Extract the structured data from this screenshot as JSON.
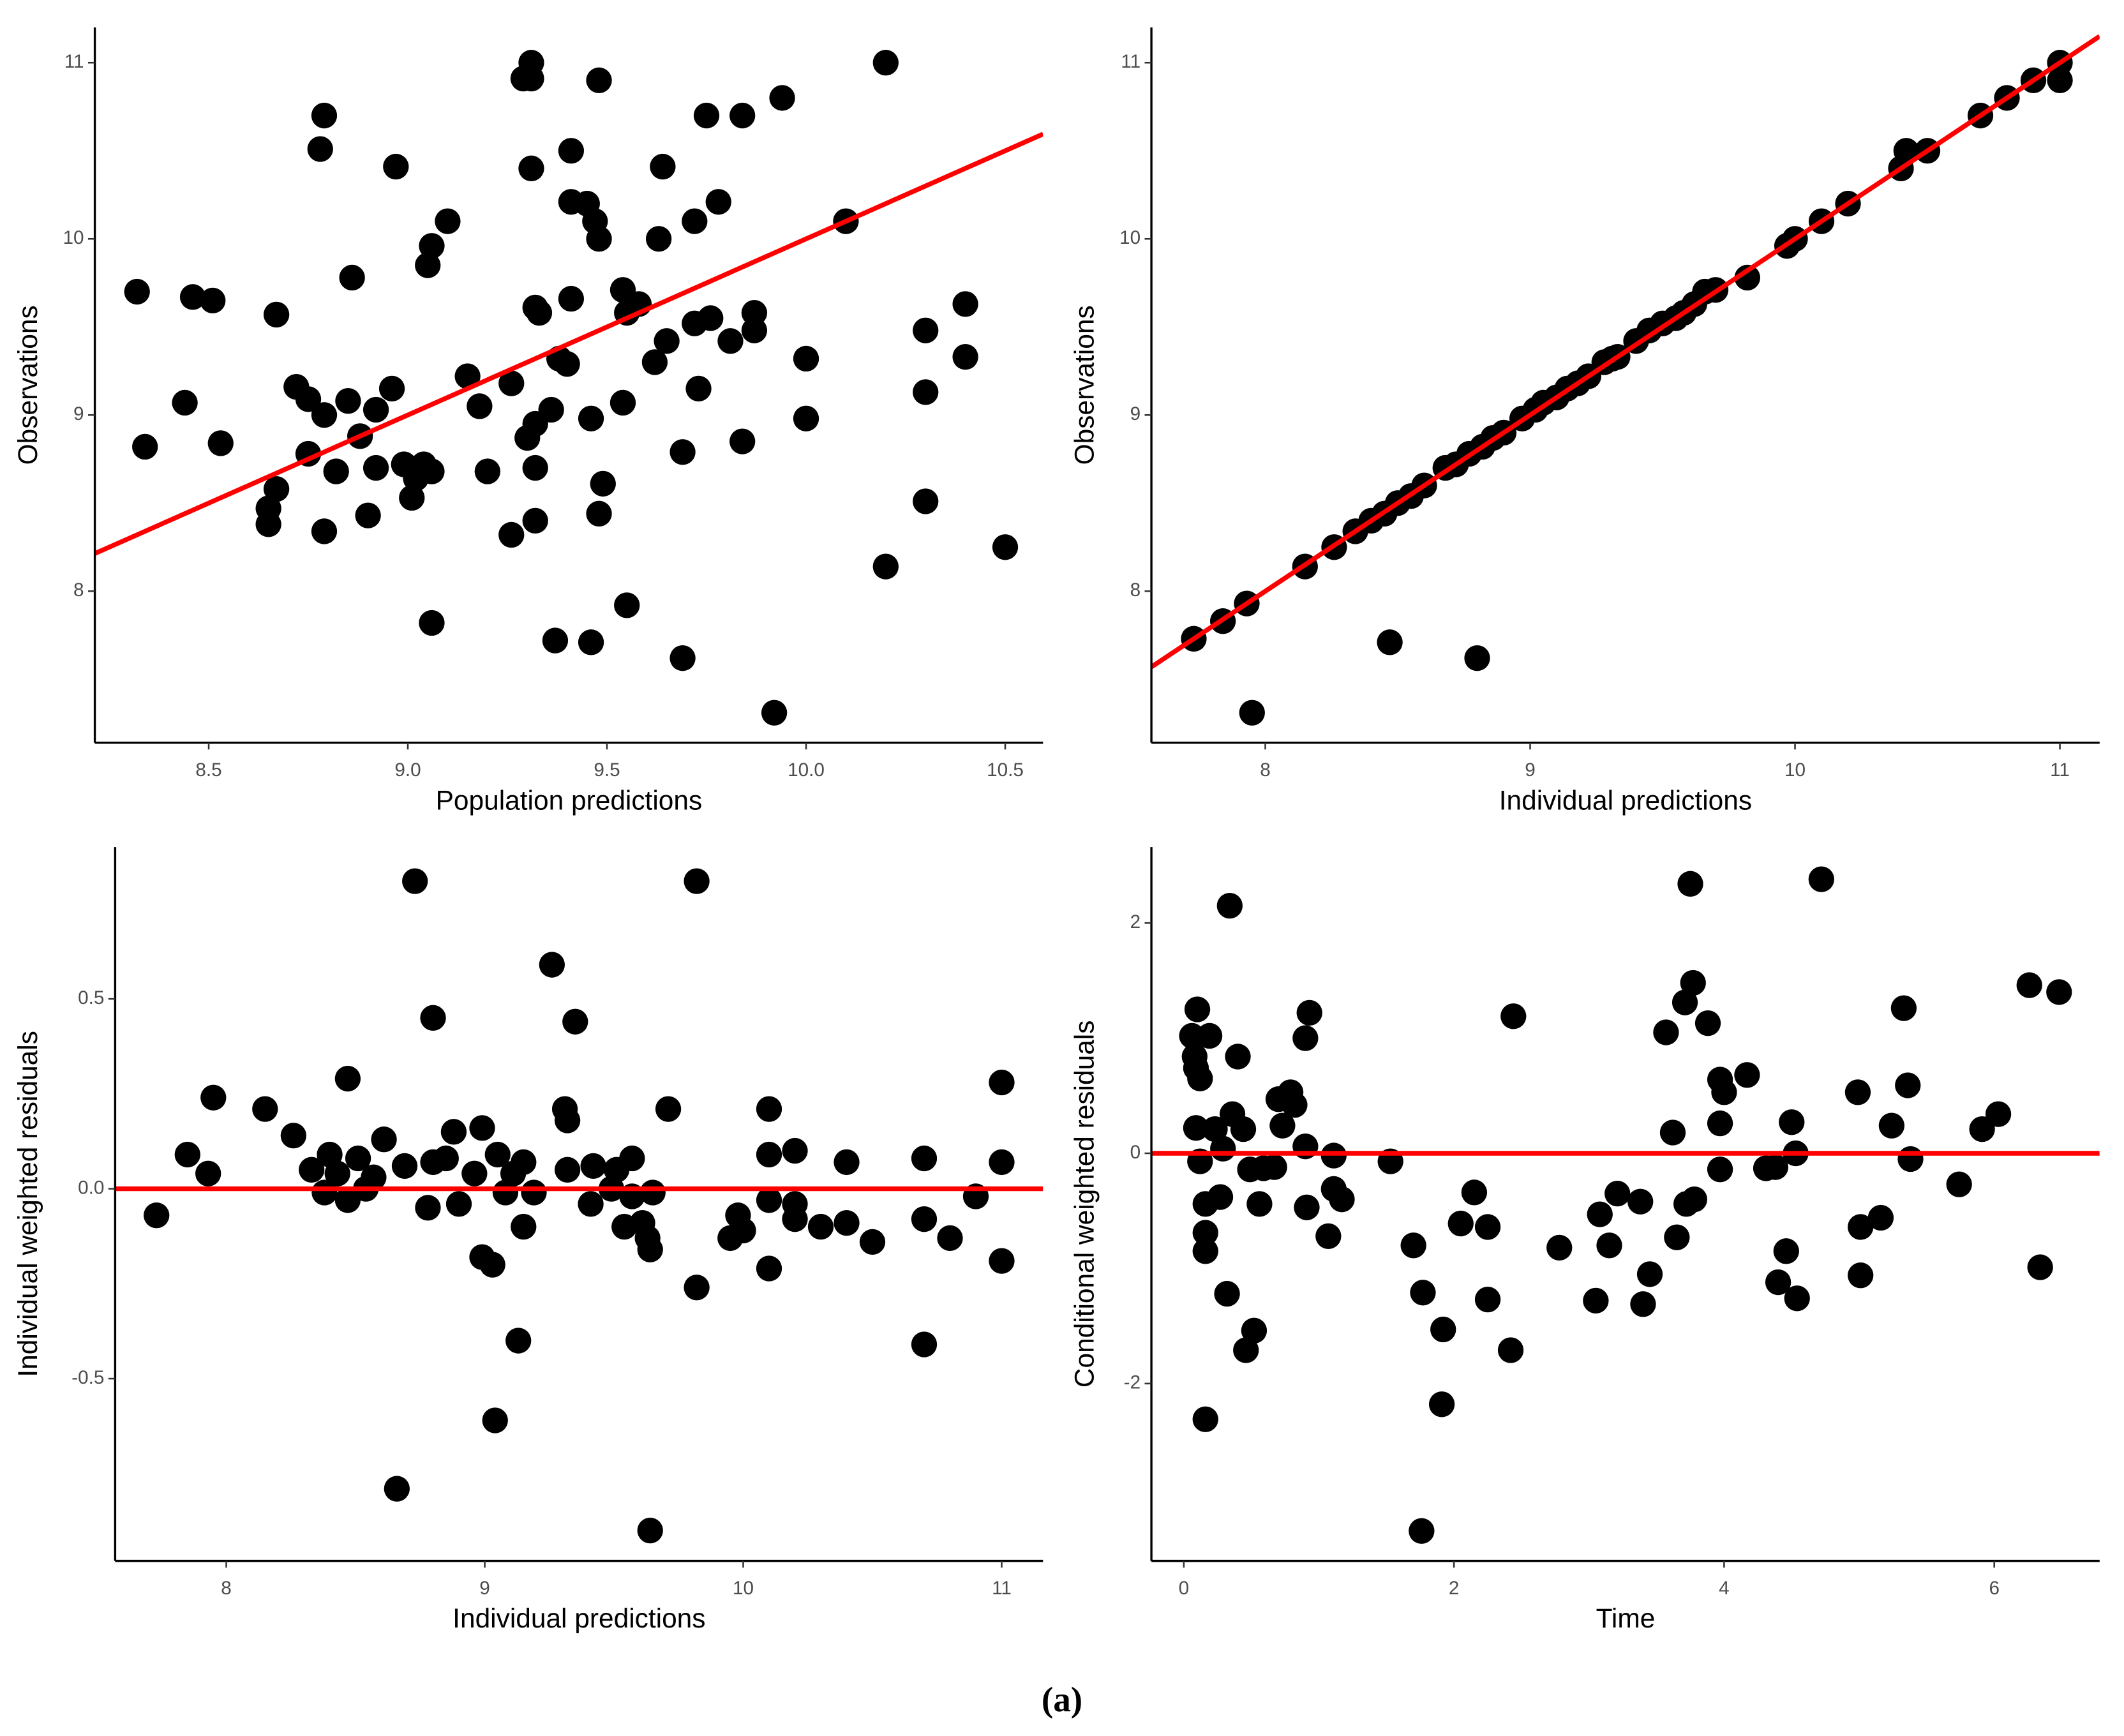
{
  "caption": "(a)",
  "chart_data": [
    {
      "type": "scatter",
      "x_label": "Population predictions",
      "y_label": "Observations",
      "color": "#000000",
      "xlim": [
        8.214,
        10.595
      ],
      "ylim": [
        7.14,
        11.2
      ],
      "xticks": [
        8.5,
        {
          "value": 9,
          "label": "9.0"
        },
        9.5,
        {
          "value": 10,
          "label": "10.0"
        },
        10.5
      ],
      "yticks": [
        8,
        9,
        10,
        11
      ],
      "line": {
        "slope": 1,
        "intercept": 0,
        "color": "#ff0000"
      },
      "x": [
        8.32,
        8.34,
        8.44,
        8.46,
        8.51,
        8.53,
        8.65,
        8.65,
        8.67,
        8.67,
        8.72,
        8.75,
        8.75,
        8.78,
        8.79,
        8.79,
        8.79,
        8.82,
        8.85,
        8.86,
        8.88,
        8.9,
        8.92,
        8.92,
        8.96,
        8.97,
        8.99,
        9.01,
        9.02,
        9.04,
        9.06,
        9.06,
        9.05,
        9.06,
        9.1,
        9.15,
        9.18,
        9.2,
        9.26,
        9.26,
        9.29,
        9.31,
        9.31,
        9.31,
        9.3,
        9.32,
        9.32,
        9.33,
        9.32,
        9.32,
        9.36,
        9.37,
        9.38,
        9.4,
        9.41,
        9.41,
        9.41,
        9.45,
        9.46,
        9.46,
        9.47,
        9.48,
        9.48,
        9.48,
        9.49,
        9.54,
        9.54,
        9.55,
        9.55,
        9.58,
        9.62,
        9.63,
        9.64,
        9.65,
        9.69,
        9.69,
        9.72,
        9.72,
        9.73,
        9.75,
        9.76,
        9.78,
        9.81,
        9.84,
        9.84,
        9.87,
        9.87,
        9.92,
        9.94,
        10.0,
        10.0,
        10.1,
        10.2,
        10.2,
        10.3,
        10.3,
        10.3,
        10.4,
        10.4,
        10.5
      ],
      "y": [
        9.7,
        8.82,
        9.07,
        9.67,
        9.65,
        8.84,
        8.47,
        8.38,
        8.58,
        9.57,
        9.16,
        9.09,
        8.78,
        10.51,
        10.7,
        8.34,
        9.0,
        8.68,
        9.08,
        9.78,
        8.88,
        8.43,
        9.03,
        8.7,
        9.15,
        10.41,
        8.72,
        8.53,
        8.64,
        8.72,
        8.68,
        7.82,
        9.85,
        9.96,
        10.1,
        9.22,
        9.05,
        8.68,
        9.18,
        8.32,
        10.91,
        11.0,
        10.91,
        10.4,
        8.87,
        8.95,
        9.61,
        9.58,
        8.7,
        8.4,
        9.03,
        7.72,
        9.32,
        9.29,
        10.5,
        9.66,
        10.21,
        10.2,
        8.98,
        7.71,
        10.1,
        10.0,
        10.9,
        8.44,
        8.61,
        9.71,
        9.07,
        7.92,
        9.58,
        9.63,
        9.3,
        10.0,
        10.41,
        9.42,
        7.62,
        8.79,
        10.1,
        9.52,
        9.15,
        10.7,
        9.55,
        10.21,
        9.42,
        10.7,
        8.85,
        9.58,
        9.48,
        7.31,
        10.8,
        9.32,
        8.98,
        10.1,
        11.0,
        8.14,
        9.48,
        9.13,
        8.51,
        9.63,
        9.33,
        8.25
      ]
    },
    {
      "type": "scatter",
      "x_label": "Individual predictions",
      "y_label": "Observations",
      "color": "#000000",
      "xlim": [
        7.57,
        11.15
      ],
      "ylim": [
        7.14,
        11.2
      ],
      "xticks": [
        8,
        9,
        10,
        11
      ],
      "yticks": [
        8,
        9,
        10,
        11
      ],
      "line": {
        "slope": 1,
        "intercept": 0,
        "color": "#ff0000"
      },
      "x": [
        7.73,
        7.84,
        7.93,
        7.95,
        8.15,
        8.26,
        8.34,
        8.4,
        8.45,
        8.47,
        8.5,
        8.55,
        8.6,
        8.68,
        8.72,
        8.77,
        8.8,
        8.82,
        8.86,
        8.9,
        8.97,
        9.02,
        9.05,
        9.1,
        9.14,
        9.18,
        9.22,
        9.28,
        9.31,
        9.33,
        9.4,
        9.45,
        9.5,
        9.55,
        9.58,
        9.62,
        9.66,
        9.7,
        9.82,
        9.97,
        10.0,
        10.1,
        10.2,
        10.4,
        10.42,
        10.5,
        10.7,
        10.8,
        10.9,
        11.0,
        11.0
      ],
      "y": [
        7.73,
        7.83,
        7.93,
        7.31,
        8.14,
        8.25,
        8.34,
        8.4,
        8.44,
        7.71,
        8.5,
        8.54,
        8.6,
        8.7,
        8.72,
        8.78,
        7.62,
        8.82,
        8.87,
        8.9,
        8.98,
        9.03,
        9.07,
        9.1,
        9.15,
        9.18,
        9.22,
        9.3,
        9.32,
        9.33,
        9.42,
        9.48,
        9.52,
        9.55,
        9.58,
        9.63,
        9.7,
        9.71,
        9.78,
        9.96,
        10.0,
        10.1,
        10.2,
        10.4,
        10.5,
        10.5,
        10.7,
        10.8,
        10.9,
        11.0,
        10.9
      ]
    },
    {
      "type": "scatter",
      "x_label": "Individual predictions",
      "y_label": "Individual weighted residuals",
      "color": "#000000",
      "xlim": [
        7.57,
        11.16
      ],
      "ylim": [
        -0.98,
        0.9
      ],
      "xticks": [
        8,
        9,
        10,
        11
      ],
      "yticks": [
        -0.5,
        {
          "value": 0,
          "label": "0.0"
        },
        0.5
      ],
      "line": {
        "slope": 0,
        "intercept": 0,
        "color": "#ff0000"
      },
      "x": [
        7.73,
        7.85,
        7.93,
        7.95,
        8.15,
        8.26,
        8.33,
        8.38,
        8.4,
        8.43,
        8.47,
        8.47,
        8.51,
        8.54,
        8.57,
        8.61,
        8.66,
        8.69,
        8.73,
        8.78,
        8.8,
        8.8,
        8.85,
        8.88,
        8.9,
        8.96,
        8.99,
        8.99,
        9.03,
        9.04,
        9.05,
        9.08,
        9.11,
        9.13,
        9.15,
        9.15,
        9.19,
        9.26,
        9.31,
        9.32,
        9.32,
        9.35,
        9.41,
        9.42,
        9.49,
        9.51,
        9.54,
        9.57,
        9.57,
        9.61,
        9.63,
        9.64,
        9.64,
        9.65,
        9.71,
        9.82,
        9.82,
        9.95,
        9.98,
        10.0,
        10.1,
        10.1,
        10.1,
        10.1,
        10.2,
        10.2,
        10.2,
        10.3,
        10.4,
        10.4,
        10.5,
        10.7,
        10.7,
        10.7,
        10.8,
        10.9,
        11.0,
        11.0,
        11.0
      ],
      "y": [
        -0.07,
        0.09,
        0.04,
        0.24,
        0.21,
        0.14,
        0.05,
        -0.01,
        0.09,
        0.04,
        -0.03,
        0.29,
        0.08,
        0.0,
        0.03,
        0.13,
        -0.79,
        0.06,
        0.81,
        -0.05,
        0.45,
        0.07,
        0.08,
        0.15,
        -0.04,
        0.04,
        0.16,
        -0.18,
        -0.2,
        -0.61,
        0.09,
        -0.01,
        0.04,
        -0.4,
        0.07,
        -0.1,
        -0.01,
        0.59,
        0.21,
        0.18,
        0.05,
        0.44,
        -0.04,
        0.06,
        0.0,
        0.05,
        -0.1,
        0.08,
        -0.02,
        -0.09,
        -0.13,
        -0.16,
        -0.9,
        -0.01,
        0.21,
        -0.26,
        0.81,
        -0.13,
        -0.07,
        -0.11,
        0.21,
        0.09,
        -0.03,
        -0.21,
        0.1,
        -0.04,
        -0.08,
        -0.1,
        0.07,
        -0.09,
        -0.14,
        0.08,
        -0.08,
        -0.41,
        -0.13,
        -0.02,
        0.28,
        0.07,
        -0.19
      ]
    },
    {
      "type": "scatter",
      "x_label": "Time",
      "y_label": "Conditional weighted residuals",
      "color": "#000000",
      "xlim": [
        -0.24,
        6.78
      ],
      "ylim": [
        -3.54,
        2.66
      ],
      "xticks": [
        0,
        2,
        4,
        6
      ],
      "yticks": [
        -2,
        0,
        2
      ],
      "line": {
        "slope": 0,
        "intercept": 0,
        "color": "#ff0000"
      },
      "x": [
        0.06,
        0.08,
        0.1,
        0.09,
        0.12,
        0.09,
        0.12,
        0.16,
        0.16,
        0.16,
        0.16,
        0.19,
        0.23,
        0.27,
        0.29,
        0.32,
        0.34,
        0.36,
        0.4,
        0.44,
        0.46,
        0.49,
        0.52,
        0.56,
        0.59,
        0.67,
        0.7,
        0.73,
        0.79,
        0.82,
        0.9,
        0.9,
        0.93,
        0.91,
        1.07,
        1.11,
        1.11,
        1.17,
        1.53,
        1.7,
        1.76,
        1.77,
        1.91,
        1.92,
        2.05,
        2.15,
        2.25,
        2.25,
        2.42,
        2.44,
        2.78,
        3.05,
        3.08,
        3.15,
        3.21,
        3.38,
        3.4,
        3.45,
        3.57,
        3.62,
        3.65,
        3.71,
        3.72,
        3.75,
        3.77,
        3.78,
        3.88,
        3.97,
        3.97,
        3.97,
        4.0,
        4.17,
        4.31,
        4.38,
        4.4,
        4.46,
        4.5,
        4.53,
        4.54,
        4.72,
        4.99,
        5.01,
        5.01,
        5.16,
        5.24,
        5.33,
        5.36,
        5.38,
        5.74,
        5.91,
        6.03,
        6.26,
        6.34,
        6.48
      ],
      "y": [
        1.02,
        0.84,
        1.25,
        0.74,
        0.65,
        0.22,
        -0.07,
        -0.69,
        -0.85,
        -0.44,
        -2.31,
        1.02,
        0.21,
        -0.38,
        0.04,
        -1.22,
        2.15,
        0.34,
        0.84,
        0.21,
        -1.71,
        -0.14,
        -1.54,
        -0.44,
        -0.13,
        -0.12,
        0.47,
        0.24,
        0.53,
        0.42,
        0.06,
        1.0,
        1.22,
        -0.47,
        -0.72,
        -0.02,
        -0.31,
        -0.4,
        -0.07,
        -0.8,
        -3.28,
        -1.21,
        -2.18,
        -1.53,
        -0.61,
        -0.34,
        -0.64,
        -1.27,
        -1.71,
        1.19,
        -0.82,
        -1.28,
        -0.53,
        -0.8,
        -0.35,
        -0.42,
        -1.31,
        -1.05,
        1.05,
        0.18,
        -0.73,
        1.31,
        -0.44,
        2.34,
        1.48,
        -0.4,
        1.13,
        0.64,
        0.26,
        -0.14,
        0.53,
        0.68,
        -0.13,
        -0.12,
        -1.12,
        -0.85,
        0.27,
        0.0,
        -1.26,
        2.38,
        0.53,
        -0.64,
        -1.06,
        -0.56,
        0.24,
        1.26,
        0.59,
        -0.05,
        -0.27,
        0.21,
        0.34,
        1.46,
        -0.99,
        1.4
      ]
    }
  ]
}
